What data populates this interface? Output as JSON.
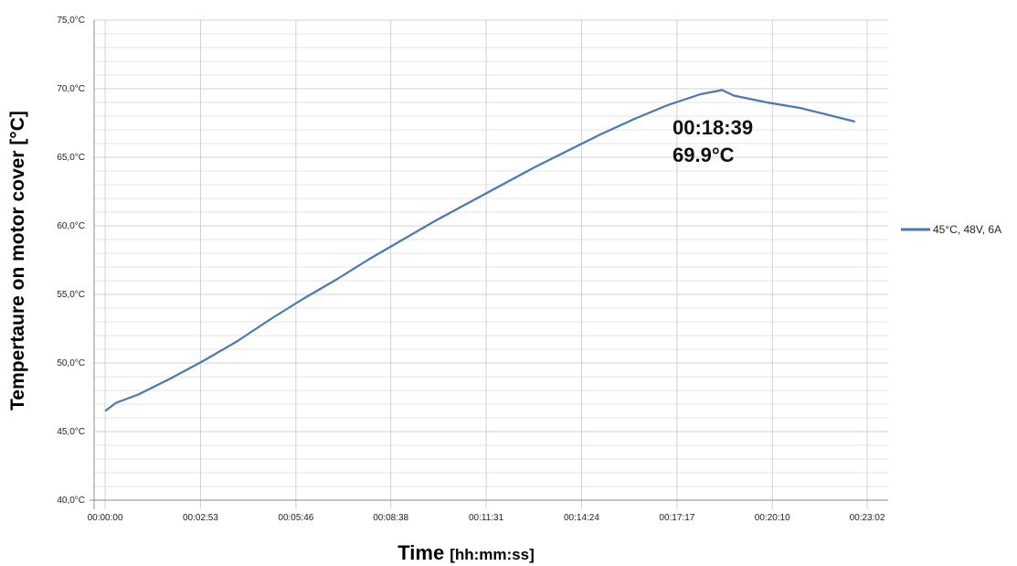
{
  "chart_data": {
    "type": "line",
    "xlabel": "Time",
    "xlabel_unit": "[hh:mm:ss]",
    "ylabel": "Tempertaure on motor cover  [°C]",
    "ylim": [
      40,
      75
    ],
    "y_ticks": [
      "40,0°C",
      "45,0°C",
      "50,0°C",
      "55,0°C",
      "60,0°C",
      "65,0°C",
      "70,0°C",
      "75,0°C"
    ],
    "y_tick_values": [
      40,
      45,
      50,
      55,
      60,
      65,
      70,
      75
    ],
    "x_ticks": [
      "00:00:00",
      "00:02:53",
      "00:05:46",
      "00:08:38",
      "00:11:31",
      "00:14:24",
      "00:17:17",
      "00:20:10",
      "00:23:02"
    ],
    "x_tick_seconds": [
      0,
      173,
      346,
      518,
      691,
      864,
      1037,
      1210,
      1382
    ],
    "xlim_seconds": [
      -20,
      1420
    ],
    "grid": true,
    "legend_position": "right",
    "series": [
      {
        "name": "45°C, 48V, 6A",
        "color": "#4a78b5",
        "x_seconds": [
          0,
          20,
          60,
          120,
          180,
          240,
          300,
          360,
          420,
          480,
          540,
          600,
          660,
          720,
          780,
          840,
          900,
          960,
          1020,
          1080,
          1119,
          1140,
          1200,
          1260,
          1320,
          1360
        ],
        "values": [
          46.5,
          47.1,
          47.7,
          48.9,
          50.2,
          51.6,
          53.2,
          54.7,
          56.1,
          57.6,
          59.0,
          60.4,
          61.7,
          63.0,
          64.3,
          65.5,
          66.7,
          67.8,
          68.8,
          69.6,
          69.9,
          69.5,
          69.0,
          68.6,
          68.0,
          67.6
        ]
      }
    ],
    "annotations": [
      {
        "line1": "00:18:39",
        "line2": "69.9°C",
        "x_seconds": 1119,
        "y": 69.9
      }
    ]
  }
}
